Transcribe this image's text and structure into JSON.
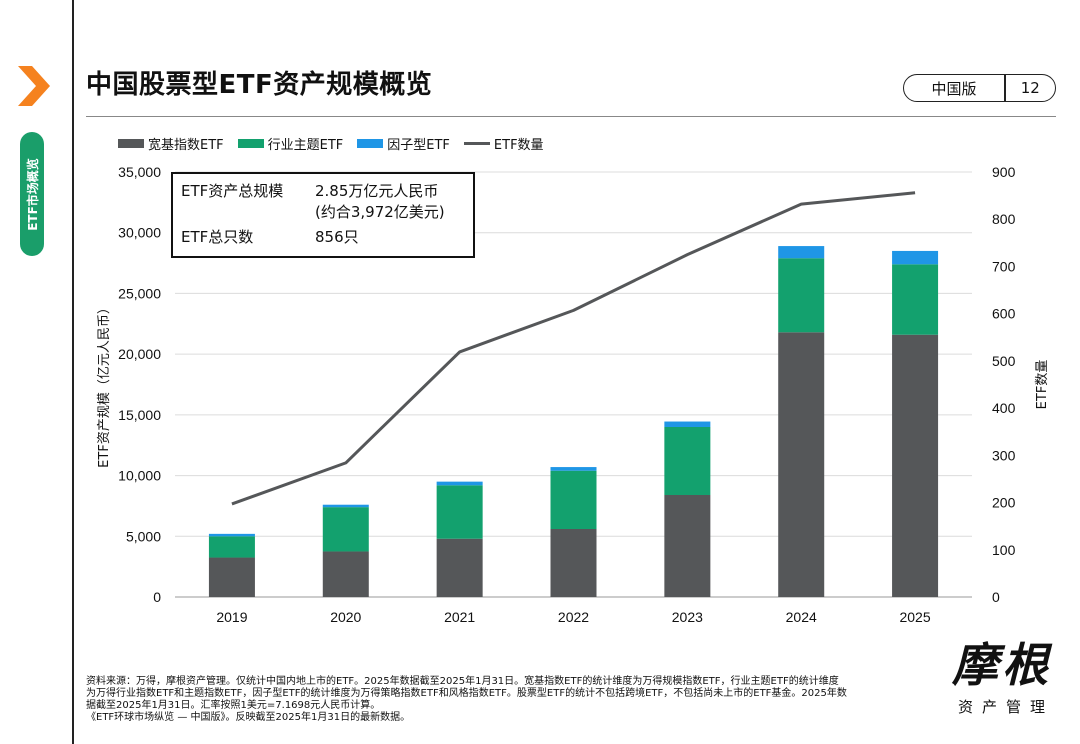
{
  "side": {
    "tab_label": "ETF市场概览"
  },
  "header": {
    "title": "中国股票型ETF资产规模概览",
    "edition": "中国版",
    "page": "12"
  },
  "info_box": {
    "rows": [
      {
        "key": "ETF资产总规模",
        "value": "2.85万亿元人民币",
        "value2": "(约合3,972亿美元)"
      },
      {
        "key": "ETF总只数",
        "value": "856只"
      }
    ]
  },
  "footnote": {
    "lines": [
      "资料来源：万得，摩根资产管理。仅统计中国内地上市的ETF。2025年数据截至2025年1月31日。宽基指数ETF的统计维度为万得规模指数ETF，行业主题ETF的统计维度",
      "为万得行业指数ETF和主题指数ETF，因子型ETF的统计维度为万得策略指数ETF和风格指数ETF。股票型ETF的统计不包括跨境ETF，不包括尚未上市的ETF基金。2025年数",
      "据截至2025年1月31日。汇率按照1美元=7.1698元人民币计算。",
      "《ETF环球市场纵览 — 中国版》。反映截至2025年1月31日的最新数据。"
    ]
  },
  "logo": {
    "mark": "摩根",
    "sub": "资产管理"
  },
  "colors": {
    "broad": "#555759",
    "sector": "#13a16e",
    "factor": "#1f96e6",
    "line": "#555759",
    "accent": "#f5821f",
    "tab": "#1a9e6a"
  },
  "chart_data": {
    "type": "bar",
    "categories": [
      "2019",
      "2020",
      "2021",
      "2022",
      "2023",
      "2024",
      "2025"
    ],
    "series": [
      {
        "name": "宽基指数ETF",
        "type": "bar",
        "axis": "left",
        "values": [
          3250,
          3750,
          4800,
          5600,
          8400,
          21800,
          21600
        ]
      },
      {
        "name": "行业主题ETF",
        "type": "bar",
        "axis": "left",
        "values": [
          1750,
          3650,
          4400,
          4800,
          5600,
          6100,
          5800
        ]
      },
      {
        "name": "因子型ETF",
        "type": "bar",
        "axis": "left",
        "values": [
          200,
          200,
          300,
          300,
          450,
          1000,
          1100
        ]
      },
      {
        "name": "ETF数量",
        "type": "line",
        "axis": "right",
        "values": [
          197,
          284,
          519,
          607,
          725,
          832,
          856
        ]
      }
    ],
    "ylabel": "ETF资产规模（亿元人民币）",
    "ylabel_right": "ETF数量",
    "ylim": [
      0,
      35000
    ],
    "y_ticks": [
      "0",
      "5,000",
      "10,000",
      "15,000",
      "20,000",
      "25,000",
      "30,000",
      "35,000"
    ],
    "ylim_right": [
      0,
      900
    ],
    "y_ticks_right": [
      "0",
      "100",
      "200",
      "300",
      "400",
      "500",
      "600",
      "700",
      "800",
      "900"
    ],
    "grid": true,
    "legend_position": "top-left"
  }
}
